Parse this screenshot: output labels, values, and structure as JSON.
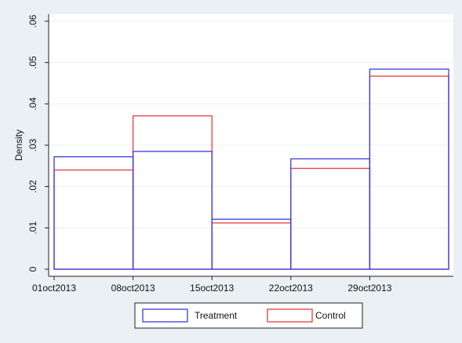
{
  "chart_data": {
    "type": "bar",
    "subtype": "histogram-overlay",
    "ylabel": "Density",
    "xlabel": "",
    "ylim": [
      0,
      0.06
    ],
    "y_ticks": [
      {
        "value": 0,
        "label": "0"
      },
      {
        "value": 0.01,
        "label": ".01"
      },
      {
        "value": 0.02,
        "label": ".02"
      },
      {
        "value": 0.03,
        "label": ".03"
      },
      {
        "value": 0.04,
        "label": ".04"
      },
      {
        "value": 0.05,
        "label": ".05"
      },
      {
        "value": 0.06,
        "label": ".06"
      }
    ],
    "x_domain": [
      "2013-09-30",
      "2013-11-08"
    ],
    "x_ticks": [
      {
        "date": "2013-10-01",
        "label": "01oct2013"
      },
      {
        "date": "2013-10-08",
        "label": "08oct2013"
      },
      {
        "date": "2013-10-15",
        "label": "15oct2013"
      },
      {
        "date": "2013-10-22",
        "label": "22oct2013"
      },
      {
        "date": "2013-10-29",
        "label": "29oct2013"
      }
    ],
    "bins": [
      {
        "start": "2013-10-01",
        "end": "2013-10-08"
      },
      {
        "start": "2013-10-08",
        "end": "2013-10-15"
      },
      {
        "start": "2013-10-15",
        "end": "2013-10-22"
      },
      {
        "start": "2013-10-22",
        "end": "2013-10-29"
      },
      {
        "start": "2013-10-29",
        "end": "2013-11-05"
      }
    ],
    "series": [
      {
        "name": "Treatment",
        "color": "#3a3ae6",
        "values": [
          0.0272,
          0.0285,
          0.0121,
          0.0267,
          0.0484
        ]
      },
      {
        "name": "Control",
        "color": "#e83d3d",
        "values": [
          0.024,
          0.0371,
          0.0112,
          0.0244,
          0.0467
        ]
      }
    ],
    "grid": true,
    "legend_position": "bottom"
  }
}
